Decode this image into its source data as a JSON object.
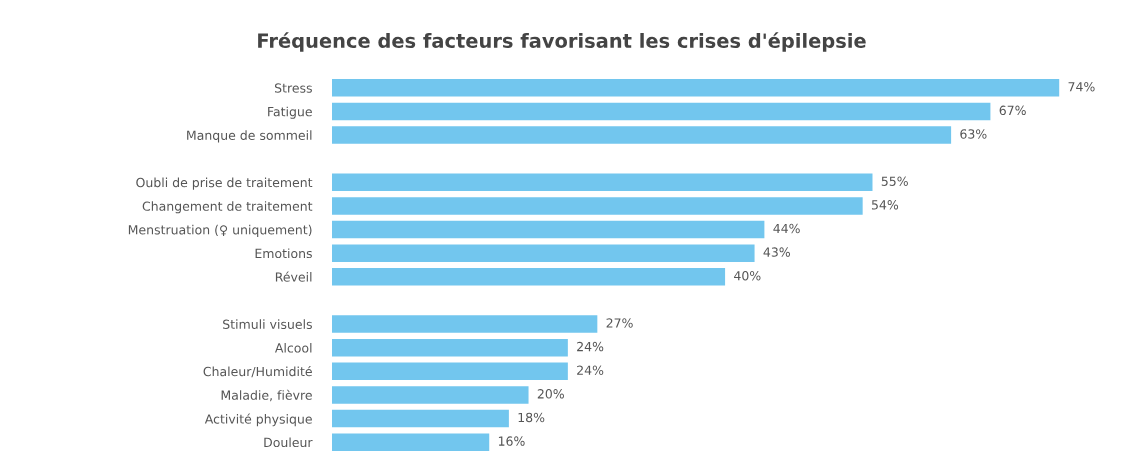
{
  "chart_data": {
    "type": "bar",
    "orientation": "horizontal",
    "title": "Fréquence des facteurs favorisant les crises d'épilepsie",
    "categories": [
      "Stress",
      "Fatigue",
      "Manque de sommeil",
      null,
      "Oubli de prise de traitement",
      "Changement de traitement",
      "Menstruation (♀ uniquement)",
      "Emotions",
      "Réveil",
      null,
      "Stimuli visuels",
      "Alcool",
      "Chaleur/Humidité",
      "Maladie, fièvre",
      "Activité physique",
      "Douleur"
    ],
    "values": [
      74,
      67,
      63,
      null,
      55,
      54,
      44,
      43,
      40,
      null,
      27,
      24,
      24,
      20,
      18,
      16
    ],
    "value_labels": [
      "74%",
      "67%",
      "63%",
      null,
      "55%",
      "54%",
      "44%",
      "43%",
      "40%",
      null,
      "27%",
      "24%",
      "24%",
      "20%",
      "18%",
      "16%"
    ],
    "color": "#72c6ee",
    "grid": false,
    "legend": false
  }
}
